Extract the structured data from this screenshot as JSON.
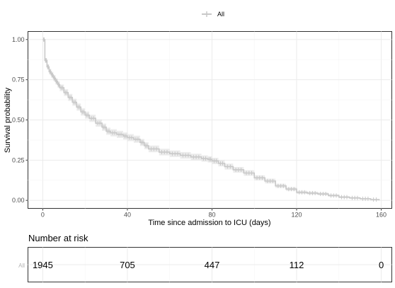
{
  "chart_data": {
    "type": "line",
    "subtype": "kaplan-meier",
    "title": "",
    "xlabel": "Time since admission to ICU (days)",
    "ylabel": "Survival probability",
    "xlim": [
      -7,
      165
    ],
    "ylim": [
      -0.05,
      1.05
    ],
    "x_ticks": [
      0,
      40,
      80,
      120,
      160
    ],
    "y_ticks": [
      0.0,
      0.25,
      0.5,
      0.75,
      1.0
    ],
    "y_tick_labels": [
      "0.00",
      "0.25",
      "0.50",
      "0.75",
      "1.00"
    ],
    "grid": true,
    "legend": {
      "position": "top",
      "entries": [
        "All"
      ]
    },
    "series": [
      {
        "name": "All",
        "color": "#c8c8c8",
        "confidence_band": true,
        "censor_marks": true,
        "x": [
          0,
          1,
          2,
          3,
          4,
          5,
          6,
          7,
          8,
          10,
          12,
          14,
          16,
          18,
          20,
          22,
          25,
          28,
          30,
          32,
          35,
          38,
          40,
          43,
          46,
          48,
          50,
          55,
          60,
          65,
          70,
          75,
          78,
          80,
          83,
          86,
          90,
          95,
          100,
          105,
          110,
          115,
          120,
          125,
          130,
          135,
          140,
          145,
          150,
          155,
          159
        ],
        "y": [
          1.0,
          0.87,
          0.83,
          0.8,
          0.78,
          0.76,
          0.74,
          0.72,
          0.7,
          0.67,
          0.64,
          0.61,
          0.58,
          0.55,
          0.53,
          0.51,
          0.48,
          0.455,
          0.43,
          0.42,
          0.41,
          0.4,
          0.39,
          0.38,
          0.36,
          0.34,
          0.32,
          0.3,
          0.29,
          0.28,
          0.27,
          0.26,
          0.255,
          0.245,
          0.23,
          0.21,
          0.19,
          0.17,
          0.14,
          0.12,
          0.09,
          0.07,
          0.05,
          0.045,
          0.04,
          0.03,
          0.02,
          0.015,
          0.01,
          0.005,
          0.0
        ]
      }
    ],
    "risk_table": {
      "title": "Number at risk",
      "strata_label": "All",
      "times": [
        0,
        40,
        80,
        120,
        160
      ],
      "counts": [
        "1945",
        "705",
        "447",
        "112",
        "0"
      ]
    }
  }
}
